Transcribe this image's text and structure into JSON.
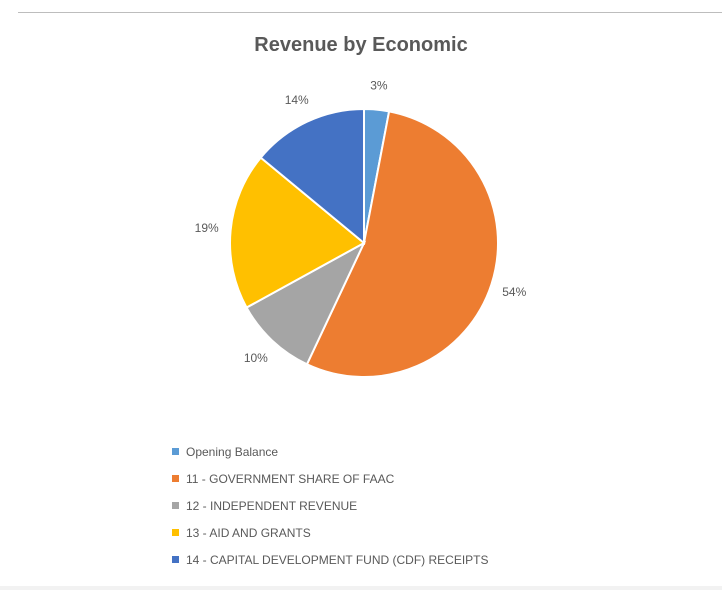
{
  "chart_data": {
    "type": "pie",
    "title": "Revenue by Economic",
    "categories": [
      "Opening Balance",
      "11 - GOVERNMENT SHARE OF FAAC",
      "12 - INDEPENDENT REVENUE",
      "13 - AID AND GRANTS",
      "14 - CAPITAL DEVELOPMENT FUND (CDF) RECEIPTS"
    ],
    "values": [
      3,
      54,
      10,
      19,
      14
    ],
    "labels": [
      "3%",
      "54%",
      "10%",
      "19%",
      "14%"
    ],
    "colors": [
      "#5b9bd5",
      "#ed7d31",
      "#a5a5a5",
      "#ffc000",
      "#4472c4"
    ],
    "start_angle_deg": 0,
    "direction": "clockwise",
    "legend_position": "bottom"
  }
}
